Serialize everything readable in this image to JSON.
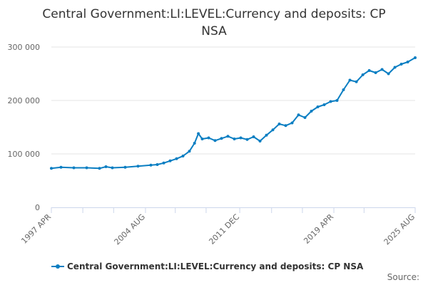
{
  "title_lines": [
    "Central Government:LI:LEVEL:Currency and deposits: CP",
    "NSA"
  ],
  "credit": "Source:",
  "colors": {
    "series": "#0a7ec2",
    "grid": "#e6e6e6",
    "axis": "#ccd6eb"
  },
  "chart_data": {
    "type": "line",
    "title": "Central Government:LI:LEVEL:Currency and deposits: CP NSA",
    "xlabel": "",
    "ylabel": "",
    "x_range": [
      1997.25,
      2025.58
    ],
    "ylim": [
      0,
      300000
    ],
    "y_ticks": [
      {
        "value": 0,
        "label": "0"
      },
      {
        "value": 100000,
        "label": "100 000"
      },
      {
        "value": 200000,
        "label": "200 000"
      },
      {
        "value": 300000,
        "label": "300 000"
      }
    ],
    "x_ticks": [
      {
        "value": 1997.25,
        "label": "1997 APR"
      },
      {
        "value": 2004.58,
        "label": "2004 AUG"
      },
      {
        "value": 2011.92,
        "label": "2011 DEC"
      },
      {
        "value": 2019.25,
        "label": "2019 APR"
      },
      {
        "value": 2025.58,
        "label": "2025 AUG"
      }
    ],
    "minor_x_ticks": [
      1999.7,
      2002.1,
      2006.9,
      2009.3,
      2014.4,
      2016.8,
      2021.6
    ],
    "series": [
      {
        "name": "Central Government:LI:LEVEL:Currency and deposits: CP NSA",
        "x": [
          1997.25,
          1998.0,
          1999.0,
          2000.0,
          2001.0,
          2001.5,
          2002.0,
          2003.0,
          2004.0,
          2005.0,
          2005.5,
          2006.0,
          2006.5,
          2007.0,
          2007.5,
          2008.0,
          2008.4,
          2008.7,
          2009.0,
          2009.5,
          2010.0,
          2010.5,
          2011.0,
          2011.5,
          2012.0,
          2012.5,
          2013.0,
          2013.5,
          2014.0,
          2014.5,
          2015.0,
          2015.5,
          2016.0,
          2016.5,
          2017.0,
          2017.5,
          2018.0,
          2018.5,
          2019.0,
          2019.5,
          2020.0,
          2020.5,
          2021.0,
          2021.5,
          2022.0,
          2022.5,
          2023.0,
          2023.5,
          2024.0,
          2024.5,
          2025.0,
          2025.58
        ],
        "values": [
          73000,
          75000,
          74000,
          74000,
          73000,
          76000,
          74000,
          75000,
          77000,
          79000,
          80000,
          83000,
          87000,
          91000,
          96000,
          105000,
          120000,
          138000,
          128000,
          130000,
          125000,
          129000,
          133000,
          128000,
          130000,
          127000,
          132000,
          124000,
          135000,
          145000,
          156000,
          153000,
          158000,
          173000,
          168000,
          180000,
          188000,
          192000,
          198000,
          200000,
          220000,
          238000,
          235000,
          248000,
          256000,
          252000,
          258000,
          250000,
          262000,
          268000,
          272000,
          280000
        ]
      }
    ]
  }
}
